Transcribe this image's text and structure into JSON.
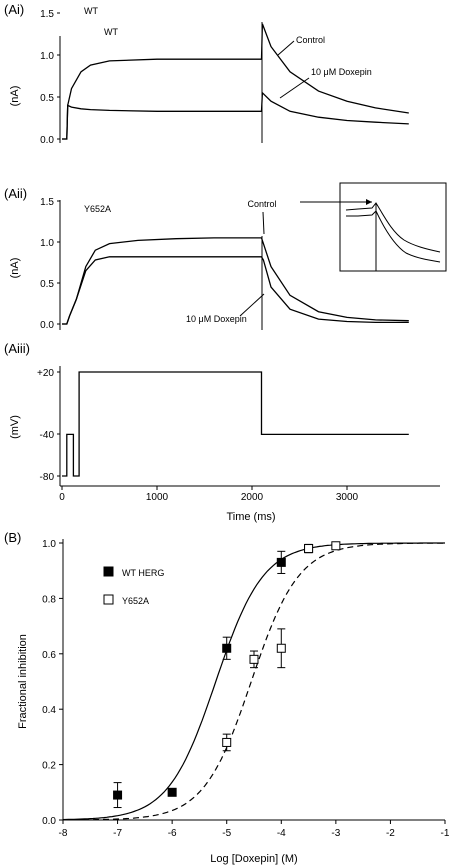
{
  "panels": {
    "ai": {
      "label": "(Ai)",
      "header": "WT",
      "sub_header": "WT",
      "ylabel": "(nA)",
      "yticks": [
        "0.0",
        "0.5",
        "1.0",
        "1.5"
      ],
      "ann_control": "Control",
      "ann_drug": "10 μM Doxepin"
    },
    "aii": {
      "label": "(Aii)",
      "header": "Y652A",
      "ylabel": "(nA)",
      "yticks": [
        "0.0",
        "0.5",
        "1.0",
        "1.5"
      ],
      "ann_control": "Control",
      "ann_drug": "10 μM Doxepin"
    },
    "aiii": {
      "label": "(Aiii)",
      "ylabel": "(mV)",
      "yticks": [
        "+20",
        "-40",
        "-80"
      ],
      "xticks": [
        "0",
        "1000",
        "2000",
        "3000"
      ],
      "xlabel": "Time (ms)"
    },
    "b": {
      "label": "(B)"
    }
  },
  "chart_data": [
    {
      "type": "line",
      "panel": "Ai",
      "ylabel": "(nA)",
      "ylim": [
        0,
        1.5
      ],
      "xlim": [
        0,
        3650
      ],
      "series": [
        {
          "name": "Control",
          "x": [
            0,
            50,
            60,
            100,
            200,
            300,
            500,
            1000,
            1500,
            2000,
            2100,
            2110,
            2200,
            2400,
            2700,
            3000,
            3300,
            3650
          ],
          "y": [
            0.0,
            0.0,
            0.4,
            0.6,
            0.8,
            0.88,
            0.93,
            0.95,
            0.95,
            0.95,
            0.95,
            1.37,
            1.1,
            0.8,
            0.57,
            0.45,
            0.37,
            0.31
          ]
        },
        {
          "name": "10 μM Doxepin",
          "x": [
            0,
            50,
            60,
            100,
            200,
            300,
            500,
            1000,
            1500,
            2000,
            2100,
            2110,
            2200,
            2400,
            2700,
            3000,
            3300,
            3650
          ],
          "y": [
            0.0,
            0.0,
            0.4,
            0.38,
            0.36,
            0.35,
            0.34,
            0.33,
            0.33,
            0.33,
            0.33,
            0.55,
            0.45,
            0.33,
            0.26,
            0.22,
            0.2,
            0.18
          ]
        }
      ]
    },
    {
      "type": "line",
      "panel": "Aii",
      "ylabel": "(nA)",
      "ylim": [
        0,
        1.5
      ],
      "xlim": [
        0,
        3650
      ],
      "series": [
        {
          "name": "Control",
          "x": [
            0,
            50,
            80,
            150,
            250,
            350,
            500,
            800,
            1200,
            1600,
            2100,
            2120,
            2200,
            2400,
            2700,
            3000,
            3300,
            3650
          ],
          "y": [
            0.0,
            0.0,
            0.1,
            0.3,
            0.7,
            0.9,
            0.98,
            1.02,
            1.04,
            1.05,
            1.05,
            0.98,
            0.7,
            0.35,
            0.15,
            0.08,
            0.05,
            0.04
          ]
        },
        {
          "name": "10 μM Doxepin",
          "x": [
            0,
            50,
            80,
            150,
            250,
            350,
            500,
            800,
            1200,
            1600,
            2100,
            2120,
            2200,
            2400,
            2700,
            3000,
            3300,
            3650
          ],
          "y": [
            0.0,
            0.0,
            0.1,
            0.3,
            0.65,
            0.78,
            0.82,
            0.82,
            0.82,
            0.82,
            0.82,
            0.78,
            0.45,
            0.18,
            0.06,
            0.03,
            0.02,
            0.02
          ]
        }
      ]
    },
    {
      "type": "line",
      "panel": "Aiii",
      "xlabel": "Time (ms)",
      "ylabel": "(mV)",
      "xlim": [
        0,
        3650
      ],
      "series": [
        {
          "name": "",
          "x": [
            0,
            50,
            50,
            120,
            120,
            180,
            180,
            2100,
            2100,
            3650
          ],
          "y": [
            -80,
            -80,
            -40,
            -40,
            -80,
            -80,
            20,
            20,
            -40,
            -40
          ]
        }
      ]
    },
    {
      "type": "scatter",
      "panel": "B",
      "xlabel": "Log [Doxepin] (M)",
      "ylabel": "Fractional inhibition",
      "xlim": [
        -8,
        -1
      ],
      "ylim": [
        0,
        1.0
      ],
      "xticks": [
        "-8",
        "-7",
        "-6",
        "-5",
        "-4",
        "-3",
        "-2",
        "-1"
      ],
      "yticks": [
        "0.0",
        "0.2",
        "0.4",
        "0.6",
        "0.8",
        "1.0"
      ],
      "series": [
        {
          "name": "WT HERG",
          "marker": "filled-square",
          "x": [
            -7,
            -6,
            -5,
            -4,
            -3.5
          ],
          "y": [
            0.09,
            0.1,
            0.62,
            0.93,
            0.98
          ],
          "err": [
            0.045,
            0.0,
            0.04,
            0.04,
            0.0
          ],
          "fit": {
            "ic50_log": -5.2,
            "hill": 1.0,
            "style": "solid"
          }
        },
        {
          "name": "Y652A",
          "marker": "open-square",
          "x": [
            -5,
            -4.5,
            -4,
            -3.5,
            -3
          ],
          "y": [
            0.28,
            0.58,
            0.62,
            0.98,
            0.99
          ],
          "err": [
            0.03,
            0.03,
            0.07,
            0.015,
            0.01
          ],
          "fit": {
            "ic50_log": -4.55,
            "hill": 1.0,
            "style": "dashed"
          }
        }
      ]
    }
  ]
}
